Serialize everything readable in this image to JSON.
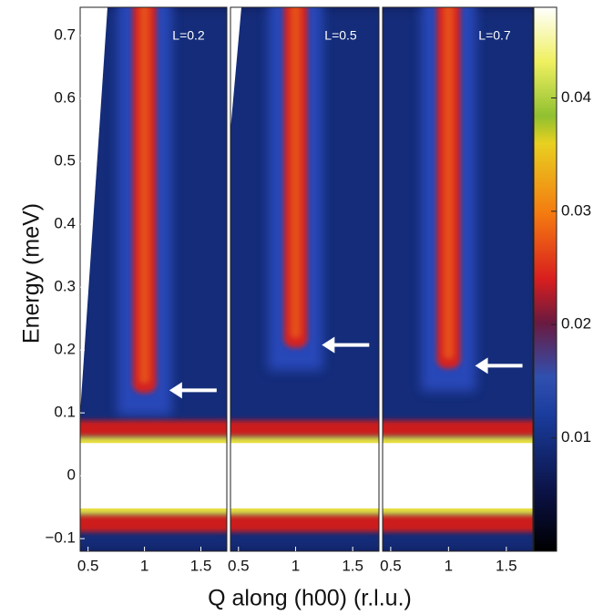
{
  "chart_data": {
    "type": "heatmap",
    "ylabel": "Energy (meV)",
    "xlabel": "Q along (h00)  (r.l.u.)",
    "ylim": [
      -0.12,
      0.745
    ],
    "yticks": [
      {
        "value": -0.1,
        "label": "−0.1"
      },
      0,
      0.1,
      0.2,
      0.3,
      0.4,
      0.5,
      0.6,
      0.7
    ],
    "xlim": [
      0.43,
      1.73
    ],
    "xticks": [
      0.5,
      1,
      1.5
    ],
    "clim": [
      0,
      0.048
    ],
    "cticks": [
      0.01,
      0.02,
      0.03,
      0.04
    ],
    "panels": [
      {
        "annotation": "L=0.2",
        "arrow": {
          "x": 1.22,
          "y": 0.136
        }
      },
      {
        "annotation": "L=0.5",
        "arrow": {
          "x": 1.23,
          "y": 0.208
        }
      },
      {
        "annotation": "L=0.7",
        "arrow": {
          "x": 1.23,
          "y": 0.175
        }
      }
    ]
  }
}
